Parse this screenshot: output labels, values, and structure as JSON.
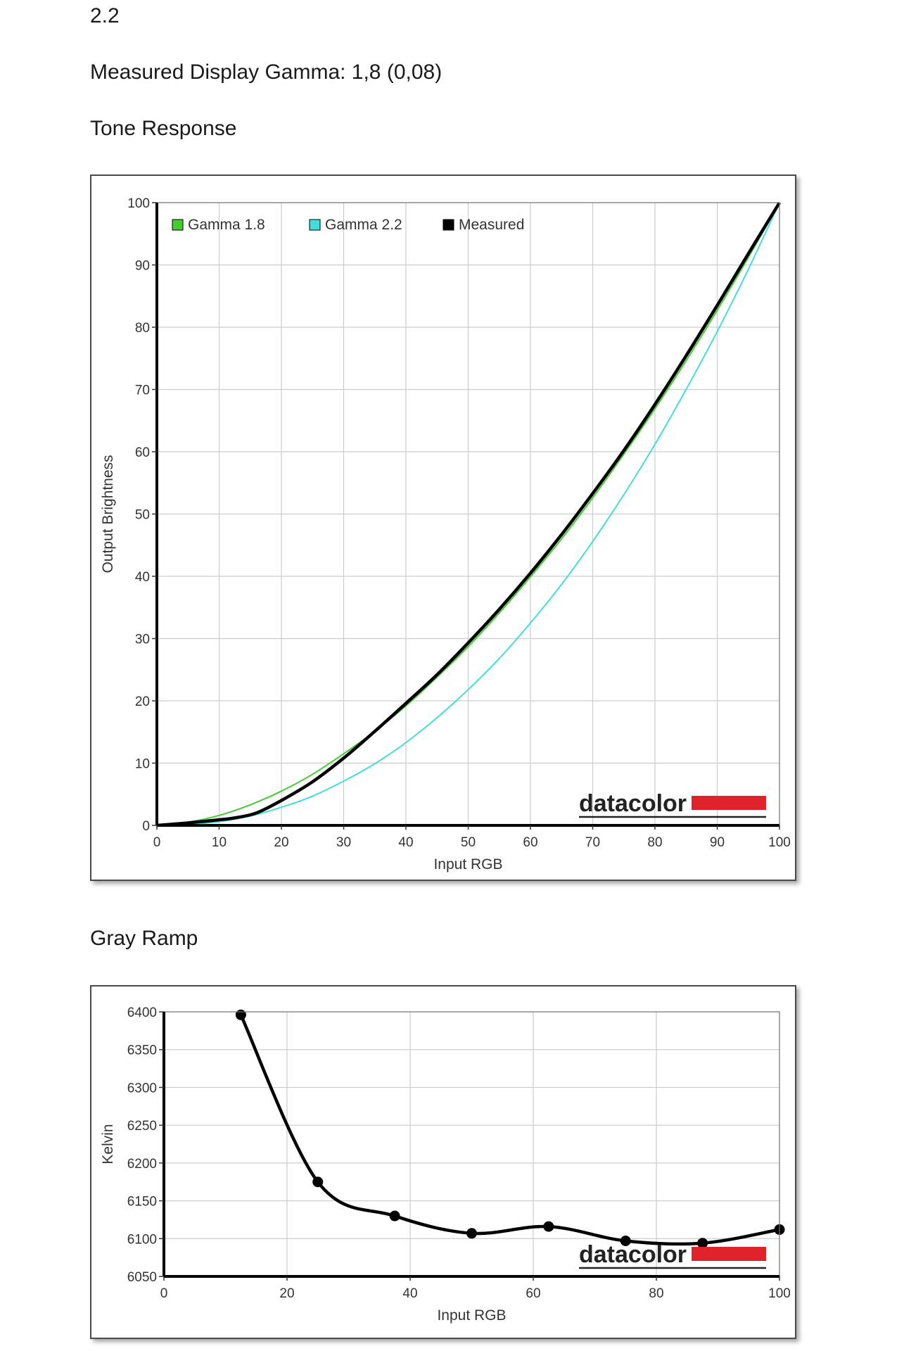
{
  "page": {
    "gamma_target": "2.2",
    "measured_gamma": "Measured Display Gamma: 1,8 (0,08)",
    "tone_heading": "Tone Response",
    "gray_heading": "Gray Ramp"
  },
  "logo": {
    "text": "datacolor",
    "bar_color": "#e0232b"
  },
  "chart_data": [
    {
      "type": "line",
      "xlabel": "Input RGB",
      "ylabel": "Output Brightness",
      "xlim": [
        0,
        100
      ],
      "ylim": [
        0,
        100
      ],
      "xticks": [
        "0",
        "10",
        "20",
        "30",
        "40",
        "50",
        "60",
        "70",
        "80",
        "90",
        "100"
      ],
      "yticks": [
        "0",
        "10",
        "20",
        "30",
        "40",
        "50",
        "60",
        "70",
        "80",
        "90",
        "100"
      ],
      "grid": true,
      "legend": "top-left",
      "series": [
        {
          "name": "Gamma 1.8",
          "color": "#44cc33",
          "x": [
            0,
            5,
            10,
            15,
            20,
            25,
            30,
            35,
            40,
            45,
            50,
            55,
            60,
            65,
            70,
            75,
            80,
            85,
            90,
            95,
            100
          ],
          "y": [
            0,
            0.5,
            1.6,
            3.3,
            5.5,
            8.2,
            11.5,
            15.1,
            19.2,
            23.8,
            28.7,
            34.1,
            39.9,
            46.0,
            52.6,
            59.6,
            66.9,
            74.6,
            82.7,
            91.2,
            100
          ]
        },
        {
          "name": "Gamma 2.2",
          "color": "#44dddd",
          "x": [
            0,
            5,
            10,
            15,
            20,
            25,
            30,
            35,
            40,
            45,
            50,
            55,
            60,
            65,
            70,
            75,
            80,
            85,
            90,
            95,
            100
          ],
          "y": [
            0,
            0.1,
            0.6,
            1.5,
            2.9,
            4.7,
            7.1,
            9.9,
            13.3,
            17.3,
            21.8,
            26.8,
            32.5,
            38.7,
            45.6,
            53.1,
            61.2,
            70.0,
            79.3,
            89.3,
            100
          ]
        },
        {
          "name": "Measured",
          "color": "#000000",
          "x": [
            0,
            5,
            10,
            12.5,
            16,
            20,
            25,
            30,
            35,
            40,
            45,
            50,
            55,
            60,
            65,
            70,
            75,
            80,
            85,
            90,
            95,
            100
          ],
          "y": [
            0,
            0.4,
            0.9,
            1.2,
            2.0,
            4.0,
            7.0,
            10.8,
            15.1,
            19.6,
            24.2,
            29.3,
            34.7,
            40.5,
            46.7,
            53.3,
            60.2,
            67.6,
            75.4,
            83.5,
            91.8,
            100
          ]
        }
      ]
    },
    {
      "type": "line",
      "xlabel": "Input RGB",
      "ylabel": "Kelvin",
      "xlim": [
        0,
        100
      ],
      "ylim": [
        6050,
        6400
      ],
      "xticks": [
        "0",
        "20",
        "40",
        "60",
        "80",
        "100"
      ],
      "yticks": [
        "6050",
        "6100",
        "6150",
        "6200",
        "6250",
        "6300",
        "6350",
        "6400"
      ],
      "grid": true,
      "series": [
        {
          "name": "",
          "color": "#000000",
          "markers": true,
          "x": [
            12.5,
            25,
            37.5,
            50,
            62.5,
            75,
            87.5,
            100
          ],
          "y": [
            6396,
            6175,
            6130,
            6107,
            6116,
            6097,
            6094,
            6112
          ]
        }
      ]
    }
  ]
}
